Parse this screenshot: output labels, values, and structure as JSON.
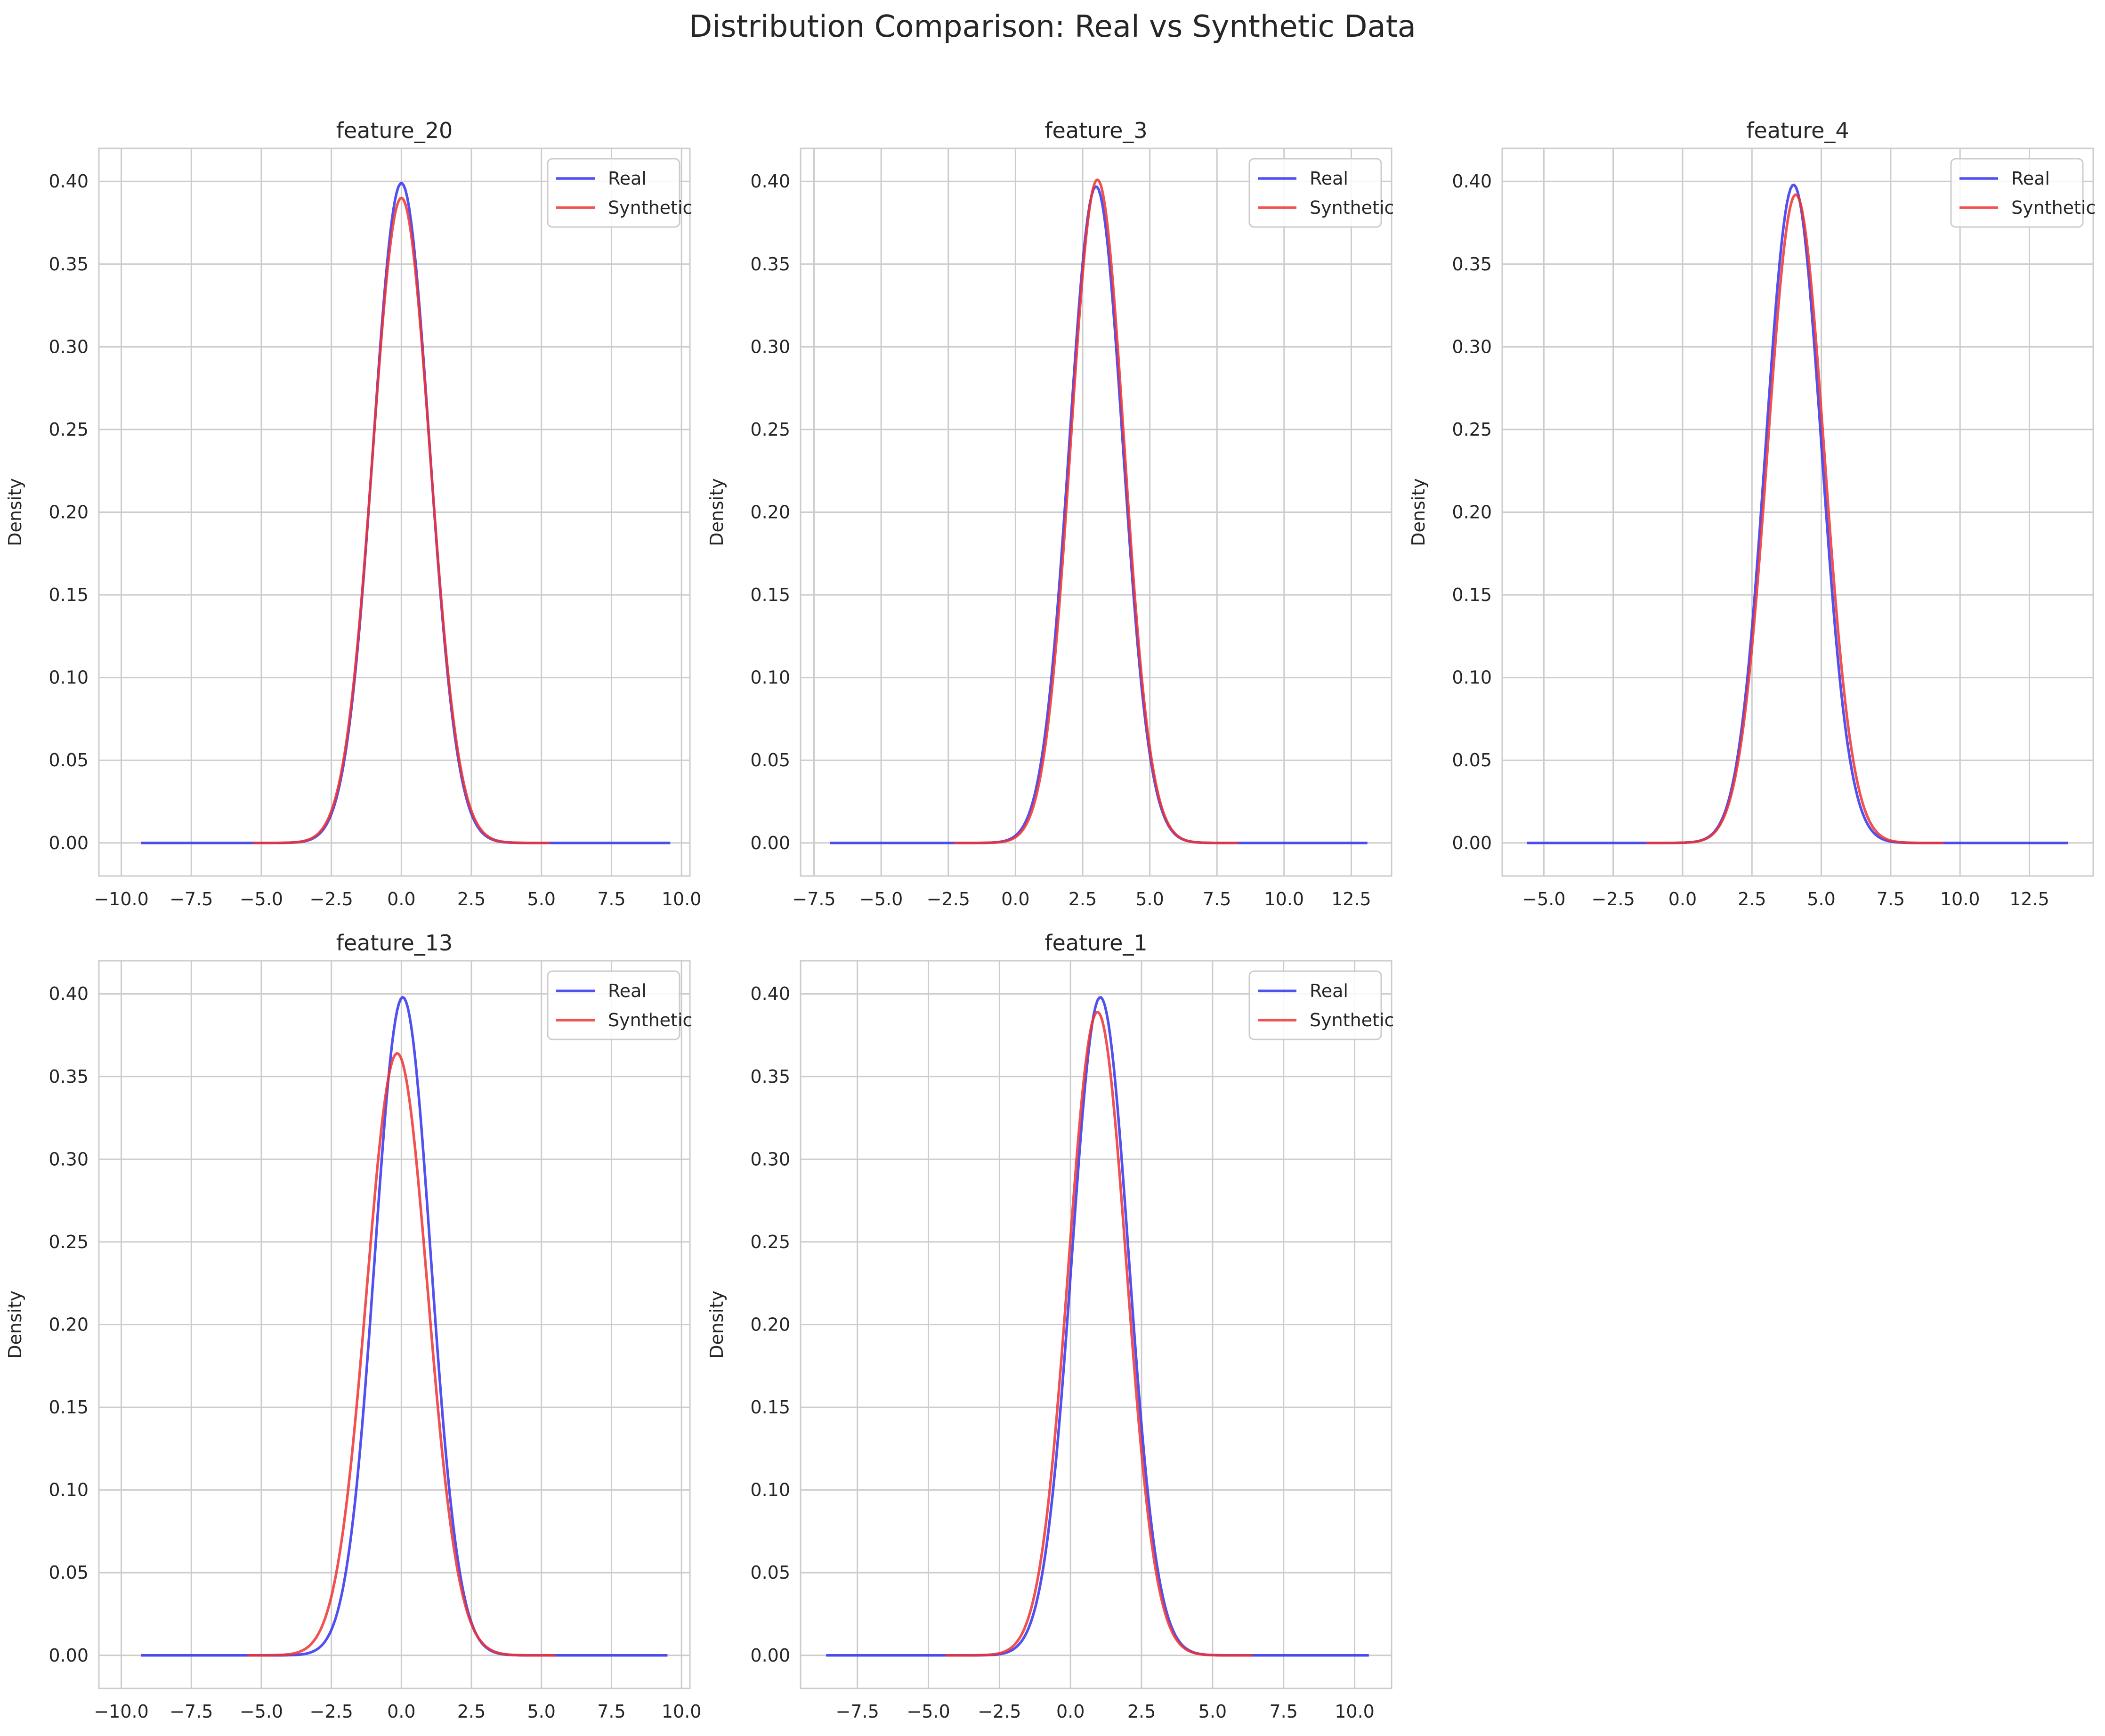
{
  "suptitle": "Distribution Comparison: Real vs Synthetic Data",
  "colors": {
    "real": "#3333ee",
    "synthetic": "#ee3333",
    "grid": "#cccccc",
    "frame": "#cccccc",
    "text": "#262626"
  },
  "chart_data": [
    {
      "type": "line",
      "title": "feature_20",
      "xlabel": "",
      "ylabel": "Density",
      "xlim": [
        -10.8,
        10.3
      ],
      "ylim": [
        -0.02,
        0.42
      ],
      "xticks": [
        "−10.0",
        "−7.5",
        "−5.0",
        "−2.5",
        "0.0",
        "2.5",
        "5.0",
        "7.5",
        "10.0"
      ],
      "xtick_values": [
        -10,
        -7.5,
        -5,
        -2.5,
        0,
        2.5,
        5,
        7.5,
        10
      ],
      "yticks": [
        "0.00",
        "0.05",
        "0.10",
        "0.15",
        "0.20",
        "0.25",
        "0.30",
        "0.35",
        "0.40"
      ],
      "ytick_values": [
        0,
        0.05,
        0.1,
        0.15,
        0.2,
        0.25,
        0.3,
        0.35,
        0.4
      ],
      "legend": "top-right",
      "grid": true,
      "series": [
        {
          "name": "Real",
          "x_range": [
            -9.3,
            9.6
          ],
          "mu": 0.0,
          "sigma": 1.0,
          "peak": 0.399
        },
        {
          "name": "Synthetic",
          "x_range": [
            -5.3,
            5.3
          ],
          "mu": 0.0,
          "sigma": 1.02,
          "peak": 0.39
        }
      ]
    },
    {
      "type": "line",
      "title": "feature_3",
      "xlabel": "",
      "ylabel": "Density",
      "xlim": [
        -8.0,
        14.0
      ],
      "ylim": [
        -0.02,
        0.42
      ],
      "xticks": [
        "−7.5",
        "−5.0",
        "−2.5",
        "0.0",
        "2.5",
        "5.0",
        "7.5",
        "10.0",
        "12.5"
      ],
      "xtick_values": [
        -7.5,
        -5,
        -2.5,
        0,
        2.5,
        5,
        7.5,
        10,
        12.5
      ],
      "yticks": [
        "0.00",
        "0.05",
        "0.10",
        "0.15",
        "0.20",
        "0.25",
        "0.30",
        "0.35",
        "0.40"
      ],
      "ytick_values": [
        0,
        0.05,
        0.1,
        0.15,
        0.2,
        0.25,
        0.3,
        0.35,
        0.4
      ],
      "legend": "top-right",
      "grid": true,
      "series": [
        {
          "name": "Real",
          "x_range": [
            -6.9,
            13.1
          ],
          "mu": 3.0,
          "sigma": 1.0,
          "peak": 0.397
        },
        {
          "name": "Synthetic",
          "x_range": [
            -2.3,
            8.3
          ],
          "mu": 3.05,
          "sigma": 0.99,
          "peak": 0.401
        }
      ]
    },
    {
      "type": "line",
      "title": "feature_4",
      "xlabel": "",
      "ylabel": "Density",
      "xlim": [
        -6.5,
        14.8
      ],
      "ylim": [
        -0.02,
        0.42
      ],
      "xticks": [
        "−5.0",
        "−2.5",
        "0.0",
        "2.5",
        "5.0",
        "7.5",
        "10.0",
        "12.5"
      ],
      "xtick_values": [
        -5,
        -2.5,
        0,
        2.5,
        5,
        7.5,
        10,
        12.5
      ],
      "yticks": [
        "0.00",
        "0.05",
        "0.10",
        "0.15",
        "0.20",
        "0.25",
        "0.30",
        "0.35",
        "0.40"
      ],
      "ytick_values": [
        0,
        0.05,
        0.1,
        0.15,
        0.2,
        0.25,
        0.3,
        0.35,
        0.4
      ],
      "legend": "top-right",
      "grid": true,
      "series": [
        {
          "name": "Real",
          "x_range": [
            -5.6,
            13.9
          ],
          "mu": 4.0,
          "sigma": 1.0,
          "peak": 0.398
        },
        {
          "name": "Synthetic",
          "x_range": [
            -1.3,
            9.4
          ],
          "mu": 4.08,
          "sigma": 1.02,
          "peak": 0.392
        }
      ]
    },
    {
      "type": "line",
      "title": "feature_13",
      "xlabel": "",
      "ylabel": "Density",
      "xlim": [
        -10.8,
        10.3
      ],
      "ylim": [
        -0.02,
        0.42
      ],
      "xticks": [
        "−10.0",
        "−7.5",
        "−5.0",
        "−2.5",
        "0.0",
        "2.5",
        "5.0",
        "7.5",
        "10.0"
      ],
      "xtick_values": [
        -10,
        -7.5,
        -5,
        -2.5,
        0,
        2.5,
        5,
        7.5,
        10
      ],
      "yticks": [
        "0.00",
        "0.05",
        "0.10",
        "0.15",
        "0.20",
        "0.25",
        "0.30",
        "0.35",
        "0.40"
      ],
      "ytick_values": [
        0,
        0.05,
        0.1,
        0.15,
        0.2,
        0.25,
        0.3,
        0.35,
        0.4
      ],
      "legend": "top-right",
      "grid": true,
      "series": [
        {
          "name": "Real",
          "x_range": [
            -9.3,
            9.5
          ],
          "mu": 0.05,
          "sigma": 1.0,
          "peak": 0.398
        },
        {
          "name": "Synthetic",
          "x_range": [
            -5.5,
            5.5
          ],
          "mu": -0.15,
          "sigma": 1.09,
          "peak": 0.364
        }
      ]
    },
    {
      "type": "line",
      "title": "feature_1",
      "xlabel": "",
      "ylabel": "Density",
      "xlim": [
        -9.5,
        11.3
      ],
      "ylim": [
        -0.02,
        0.42
      ],
      "xticks": [
        "−7.5",
        "−5.0",
        "−2.5",
        "0.0",
        "2.5",
        "5.0",
        "7.5",
        "10.0"
      ],
      "xtick_values": [
        -7.5,
        -5,
        -2.5,
        0,
        2.5,
        5,
        7.5,
        10
      ],
      "yticks": [
        "0.00",
        "0.05",
        "0.10",
        "0.15",
        "0.20",
        "0.25",
        "0.30",
        "0.35",
        "0.40"
      ],
      "ytick_values": [
        0,
        0.05,
        0.1,
        0.15,
        0.2,
        0.25,
        0.3,
        0.35,
        0.4
      ],
      "legend": "top-right",
      "grid": true,
      "series": [
        {
          "name": "Real",
          "x_range": [
            -8.6,
            10.5
          ],
          "mu": 1.05,
          "sigma": 1.0,
          "peak": 0.398
        },
        {
          "name": "Synthetic",
          "x_range": [
            -4.4,
            6.4
          ],
          "mu": 0.95,
          "sigma": 1.02,
          "peak": 0.389
        }
      ]
    }
  ]
}
